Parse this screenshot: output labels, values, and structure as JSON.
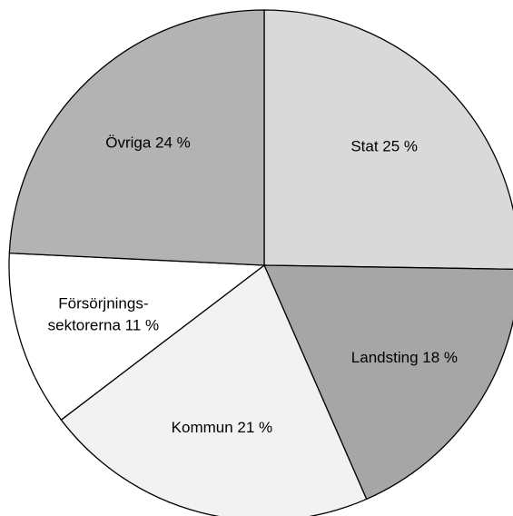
{
  "chart_data": {
    "type": "pie",
    "labels": [
      [
        "Stat 25 %"
      ],
      [
        "Landsting 18 %"
      ],
      [
        "Kommun 21 %"
      ],
      [
        "Försörjnings-",
        "sektorerna 11 %"
      ],
      [
        "Övriga 24 %"
      ]
    ],
    "values": [
      25,
      18,
      21,
      11,
      24
    ],
    "colors": [
      "#d9d9d9",
      "#a6a6a6",
      "#f2f2f2",
      "#ffffff",
      "#b3b3b3"
    ]
  }
}
